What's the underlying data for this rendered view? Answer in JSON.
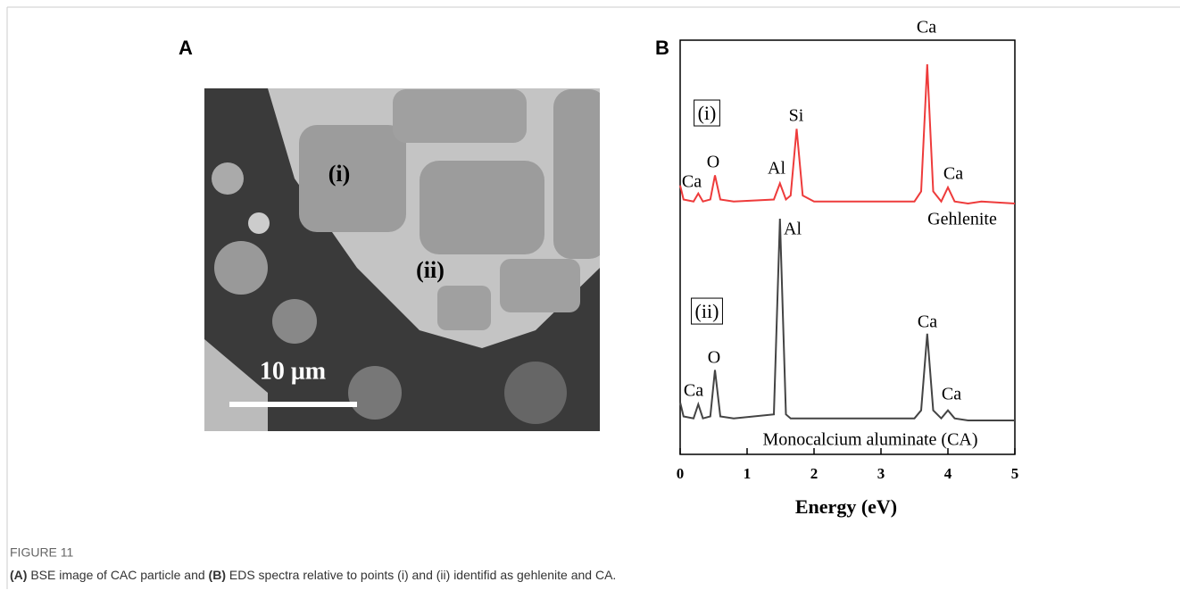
{
  "panel_a": {
    "label": "A",
    "point_labels": [
      "(i)",
      "(ii)"
    ],
    "scale_bar": "10 μm"
  },
  "chart_data": {
    "type": "line",
    "panel_label": "B",
    "xlabel": "Energy (eV)",
    "xlim": [
      0,
      5
    ],
    "xticks": [
      0,
      1,
      2,
      3,
      4,
      5
    ],
    "x": [
      0,
      0.05,
      0.2,
      0.27,
      0.34,
      0.45,
      0.52,
      0.6,
      0.8,
      1.4,
      1.49,
      1.58,
      1.65,
      1.74,
      1.83,
      2.0,
      3.5,
      3.6,
      3.69,
      3.78,
      3.9,
      4.0,
      4.1,
      4.3,
      4.5,
      5.0
    ],
    "series": [
      {
        "name": "Gehlenite",
        "tag": "(i)",
        "color": "#ee3b3b",
        "peak_labels": [
          "Ca",
          "O",
          "Al",
          "Si",
          "Ca",
          "Ca"
        ],
        "values": [
          9,
          2,
          1,
          5,
          1,
          2,
          14,
          2,
          1,
          2,
          10,
          2,
          4,
          37,
          4,
          1,
          1,
          6,
          69,
          6,
          1,
          8,
          1,
          0,
          1,
          0
        ]
      },
      {
        "name": "Monocalcium aluminate (CA)",
        "tag": "(ii)",
        "color": "#444444",
        "peak_labels": [
          "Ca",
          "O",
          "Al",
          "Ca",
          "Ca"
        ],
        "values": [
          9,
          2,
          1,
          8,
          1,
          2,
          25,
          2,
          1,
          3,
          100,
          3,
          1,
          1,
          1,
          1,
          1,
          5,
          43,
          5,
          1,
          5,
          1,
          0,
          0,
          0
        ]
      }
    ]
  },
  "caption": {
    "figure_label": "FIGURE 11",
    "a_ref": "(A)",
    "text_1": " BSE image of CAC particle and ",
    "b_ref": "(B)",
    "text_2": " EDS spectra relative to points (i) and (ii) identifid as gehlenite and CA."
  }
}
